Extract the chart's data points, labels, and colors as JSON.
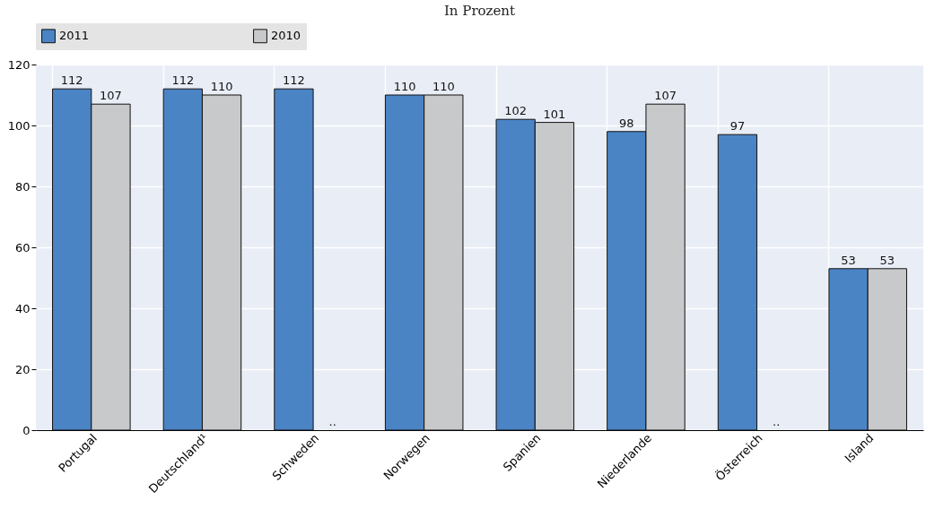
{
  "chart_data": {
    "type": "bar",
    "title": "In Prozent",
    "categories": [
      "Portugal",
      "Deutschland¹",
      "Schweden",
      "Norwegen",
      "Spanien",
      "Niederlande",
      "Österreich",
      "Island"
    ],
    "series": [
      {
        "name": "2011",
        "color": "#4a84c4",
        "values": [
          112,
          112,
          112,
          110,
          102,
          98,
          97,
          53
        ],
        "value_labels": [
          "112",
          "112",
          "112",
          "110",
          "102",
          "98",
          "97",
          "53"
        ]
      },
      {
        "name": "2010",
        "color": "#c8c9cb",
        "values": [
          107,
          110,
          null,
          110,
          101,
          107,
          null,
          53
        ],
        "value_labels": [
          "107",
          "110",
          "..",
          "110",
          "101",
          "107",
          "..",
          "53"
        ]
      }
    ],
    "ylim": [
      0,
      120
    ],
    "yticks": [
      0,
      20,
      40,
      60,
      80,
      100,
      120
    ],
    "grid": true,
    "legend": "top"
  }
}
